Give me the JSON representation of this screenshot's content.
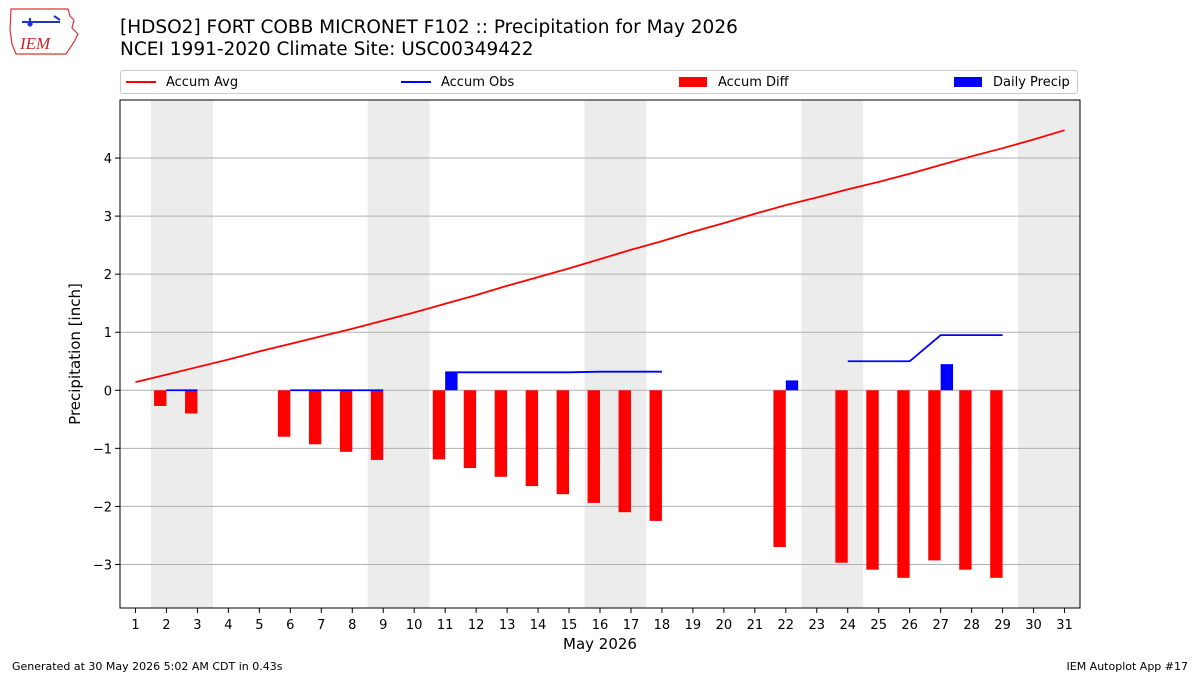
{
  "header": {
    "logo_text": "IEM",
    "title_line1": "[HDSO2] FORT COBB MICRONET F102 :: Precipitation for May 2026",
    "title_line2": "NCEI 1991-2020 Climate Site: USC00349422"
  },
  "legend": [
    {
      "label": "Accum Avg",
      "color": "#ff0000",
      "kind": "line"
    },
    {
      "label": "Accum Obs",
      "color": "#0000ff",
      "kind": "line"
    },
    {
      "label": "Accum Diff",
      "color": "#ff0000",
      "kind": "box"
    },
    {
      "label": "Daily Precip",
      "color": "#0000ff",
      "kind": "box"
    }
  ],
  "footer": {
    "left": "Generated at 30 May 2026 5:02 AM CDT in 0.43s",
    "right": "IEM Autoplot App #17"
  },
  "chart_data": {
    "type": "bar",
    "xlabel": "May 2026",
    "ylabel": "Precipitation [inch]",
    "xlim": [
      0.5,
      31.5
    ],
    "ylim": [
      -3.75,
      5.0
    ],
    "yticks": [
      4,
      3,
      2,
      1,
      0,
      -1,
      -2,
      -3
    ],
    "ytick_labels": [
      "4",
      "3",
      "2",
      "1",
      "0",
      "−1",
      "−2",
      "−3"
    ],
    "xticks": [
      1,
      2,
      3,
      4,
      5,
      6,
      7,
      8,
      9,
      10,
      11,
      12,
      13,
      14,
      15,
      16,
      17,
      18,
      19,
      20,
      21,
      22,
      23,
      24,
      25,
      26,
      27,
      28,
      29,
      30,
      31
    ],
    "grid": "horizontal",
    "weekend_shading": [
      [
        1.5,
        3.5
      ],
      [
        8.5,
        10.5
      ],
      [
        15.5,
        17.5
      ],
      [
        22.5,
        24.5
      ],
      [
        29.5,
        31.5
      ]
    ],
    "accum_avg": {
      "name": "Accum Avg",
      "color": "#ff0000",
      "x": [
        1,
        2,
        3,
        4,
        5,
        6,
        7,
        8,
        9,
        10,
        11,
        12,
        13,
        14,
        15,
        16,
        17,
        18,
        19,
        20,
        21,
        22,
        23,
        24,
        25,
        26,
        27,
        28,
        29,
        30,
        31
      ],
      "y": [
        0.14,
        0.27,
        0.4,
        0.53,
        0.67,
        0.8,
        0.93,
        1.06,
        1.2,
        1.34,
        1.49,
        1.64,
        1.8,
        1.95,
        2.1,
        2.26,
        2.42,
        2.57,
        2.73,
        2.88,
        3.04,
        3.19,
        3.32,
        3.46,
        3.59,
        3.73,
        3.88,
        4.03,
        4.17,
        4.32,
        4.48
      ]
    },
    "accum_obs": {
      "name": "Accum Obs",
      "color": "#0000ff",
      "segments": [
        {
          "x": [
            2,
            3
          ],
          "y": [
            0.0,
            0.0
          ]
        },
        {
          "x": [
            6,
            7,
            8,
            9
          ],
          "y": [
            0.0,
            0.0,
            0.0,
            0.0
          ]
        },
        {
          "x": [
            11,
            12,
            13,
            14,
            15,
            16,
            17,
            18
          ],
          "y": [
            0.31,
            0.31,
            0.31,
            0.31,
            0.31,
            0.32,
            0.32,
            0.32
          ]
        },
        {
          "x": [
            24,
            25,
            26,
            27,
            28,
            29
          ],
          "y": [
            0.5,
            0.5,
            0.5,
            0.95,
            0.95,
            0.95
          ]
        }
      ]
    },
    "accum_diff": {
      "name": "Accum Diff",
      "color": "#ff0000",
      "x": [
        2,
        3,
        6,
        7,
        8,
        9,
        11,
        12,
        13,
        14,
        15,
        16,
        17,
        18,
        22,
        24,
        25,
        26,
        27,
        28,
        29
      ],
      "y": [
        -0.27,
        -0.4,
        -0.8,
        -0.93,
        -1.06,
        -1.2,
        -1.19,
        -1.34,
        -1.49,
        -1.65,
        -1.79,
        -1.94,
        -2.1,
        -2.25,
        -2.7,
        -2.97,
        -3.09,
        -3.23,
        -2.93,
        -3.09,
        -3.23
      ]
    },
    "daily_precip": {
      "name": "Daily Precip",
      "color": "#0000ff",
      "x": [
        11,
        22,
        27
      ],
      "y": [
        0.31,
        0.17,
        0.45
      ]
    }
  }
}
